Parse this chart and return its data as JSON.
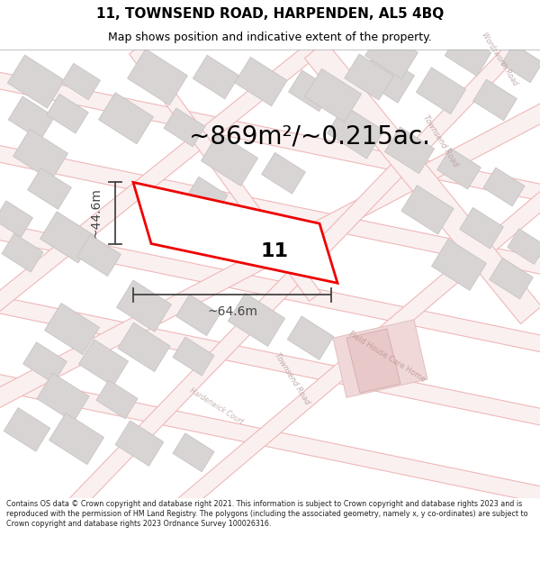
{
  "title_line1": "11, TOWNSEND ROAD, HARPENDEN, AL5 4BQ",
  "title_line2": "Map shows position and indicative extent of the property.",
  "area_text": "~869m²/~0.215ac.",
  "dim_width": "~64.6m",
  "dim_height": "~44.6m",
  "property_label": "11",
  "footer_text": "Contains OS data © Crown copyright and database right 2021. This information is subject to Crown copyright and database rights 2023 and is reproduced with the permission of HM Land Registry. The polygons (including the associated geometry, namely x, y co-ordinates) are subject to Crown copyright and database rights 2023 Ordnance Survey 100026316.",
  "bg_color": "#ffffff",
  "map_bg": "#ffffff",
  "road_outline_color": "#f0b8b8",
  "road_fill_color": "#faf0f0",
  "building_fill": "#d8d4d4",
  "building_edge": "#c8c4c4",
  "property_edge": "#ee0000",
  "property_fill": "#ffffff",
  "dim_line_color": "#444444",
  "title_color": "#000000",
  "footer_color": "#222222",
  "text_color": "#000000",
  "road_label_color": "#b8a0a0",
  "area_text_fontsize": 20,
  "property_label_fontsize": 16,
  "dim_label_fontsize": 10,
  "title_fontsize": 11,
  "subtitle_fontsize": 9
}
